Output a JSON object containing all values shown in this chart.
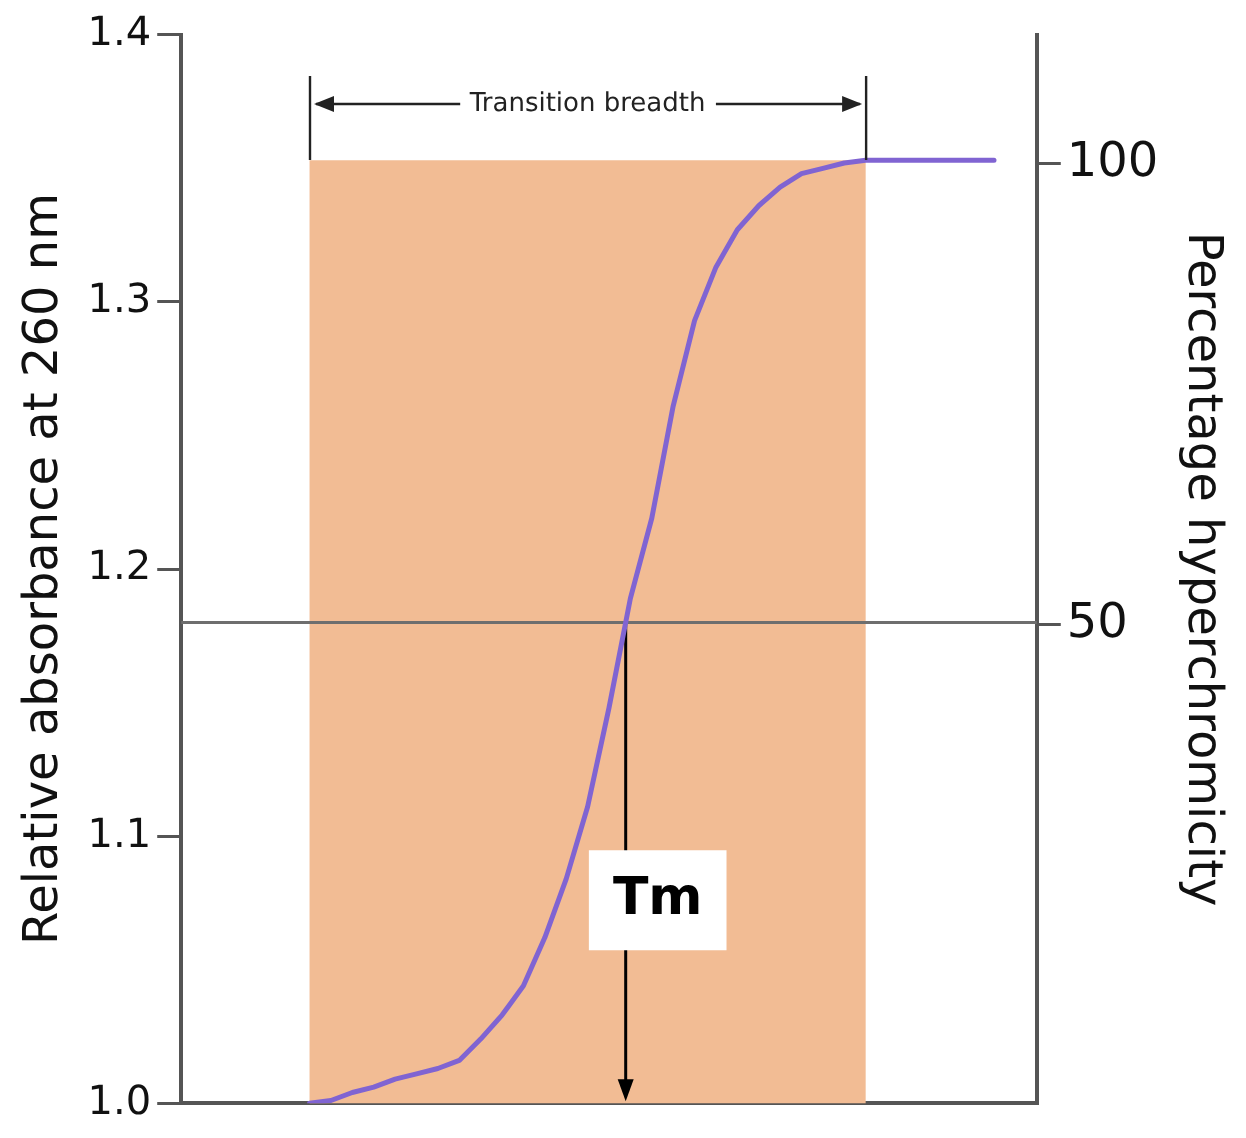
{
  "chart_data": {
    "type": "line",
    "ylabel": "Relative absorbance at 260 nm",
    "y2label": "Percentage hyperchromicity",
    "categories": [
      null,
      null,
      null,
      null,
      null,
      null,
      null,
      null,
      null,
      null,
      null,
      null,
      null,
      null,
      null,
      null,
      null,
      null,
      null,
      null,
      null,
      null,
      null,
      null,
      null,
      null,
      null,
      null,
      null,
      null,
      null,
      null,
      null,
      null,
      null,
      null,
      null,
      null,
      null,
      null,
      null
    ],
    "ylim": [
      1.0,
      1.4
    ],
    "yticks": [
      {
        "value": 1.0,
        "label": "1.0"
      },
      1.1,
      1.2,
      1.3,
      1.4
    ],
    "y2lim": [
      -2,
      114
    ],
    "y2ticks": [
      50,
      100
    ],
    "tick_labels": "y",
    "grid": false,
    "legend": false,
    "marker": "none",
    "line_style": "solid",
    "series": [
      {
        "color": "#8064d2",
        "values": [
          null,
          null,
          null,
          null,
          null,
          null,
          1.0,
          1.001,
          1.004,
          1.006,
          1.009,
          1.011,
          1.013,
          1.016,
          1.024,
          1.033,
          1.044,
          1.062,
          1.084,
          1.111,
          1.148,
          1.189,
          1.219,
          1.261,
          1.293,
          1.313,
          1.327,
          1.336,
          1.343,
          1.348,
          1.35,
          1.352,
          1.353,
          1.353,
          1.353,
          1.353,
          1.353,
          1.353,
          1.353,
          null,
          null
        ]
      }
    ],
    "ref_lines": [
      {
        "axis": "y",
        "value": 1.18,
        "color": "#6e6e6e"
      }
    ],
    "annotations": [
      "Transition breadth",
      "Tm"
    ]
  }
}
